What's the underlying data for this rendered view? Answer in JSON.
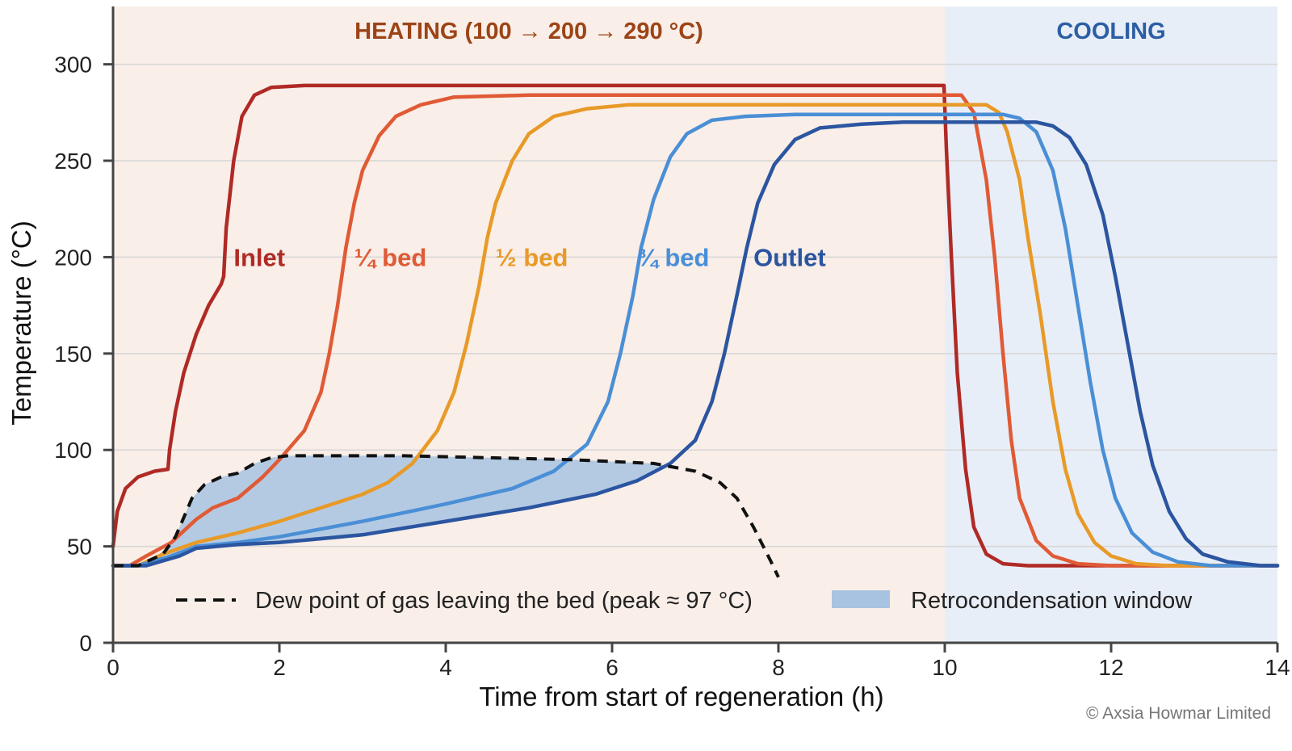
{
  "chart_data": {
    "type": "line",
    "title": "",
    "xlabel": "Time from start of regeneration (h)",
    "ylabel": "Temperature (°C)",
    "xlim": [
      0,
      14
    ],
    "ylim": [
      0,
      330
    ],
    "x_ticks": [
      "0",
      "2",
      "4",
      "6",
      "8",
      "10",
      "12",
      "14"
    ],
    "y_ticks": [
      "0",
      "50",
      "100",
      "150",
      "200",
      "250",
      "300"
    ],
    "grid": "horizontal",
    "phases": [
      {
        "label": "HEATING  (100 → 200 → 290 °C)",
        "x_start": 0,
        "x_end": 10,
        "color": "#f9eee8",
        "label_color": "#9c4416"
      },
      {
        "label": "COOLING",
        "x_start": 10,
        "x_end": 14,
        "color": "#e8eef7",
        "label_color": "#2c5ea6"
      }
    ],
    "series": [
      {
        "name": "Inlet",
        "color": "#b02a25",
        "label_pos": [
          1.45,
          200
        ],
        "points": [
          [
            0,
            50
          ],
          [
            0.05,
            68
          ],
          [
            0.15,
            80
          ],
          [
            0.3,
            86
          ],
          [
            0.5,
            89
          ],
          [
            0.66,
            90
          ],
          [
            0.68,
            100
          ],
          [
            0.75,
            120
          ],
          [
            0.85,
            140
          ],
          [
            1.0,
            160
          ],
          [
            1.15,
            175
          ],
          [
            1.3,
            186
          ],
          [
            1.33,
            190
          ],
          [
            1.36,
            215
          ],
          [
            1.45,
            250
          ],
          [
            1.55,
            273
          ],
          [
            1.7,
            284
          ],
          [
            1.9,
            288
          ],
          [
            2.3,
            289
          ],
          [
            9.99,
            289
          ],
          [
            10.02,
            255
          ],
          [
            10.08,
            200
          ],
          [
            10.15,
            140
          ],
          [
            10.25,
            90
          ],
          [
            10.35,
            60
          ],
          [
            10.5,
            46
          ],
          [
            10.7,
            41
          ],
          [
            11.0,
            40
          ],
          [
            14,
            40
          ]
        ]
      },
      {
        "name": "¼ bed",
        "color": "#e05a35",
        "label_pos": [
          2.9,
          200
        ],
        "points": [
          [
            0,
            40
          ],
          [
            0.2,
            40
          ],
          [
            0.4,
            45
          ],
          [
            0.7,
            52
          ],
          [
            1.0,
            64
          ],
          [
            1.2,
            70
          ],
          [
            1.5,
            75
          ],
          [
            1.8,
            86
          ],
          [
            2.0,
            95
          ],
          [
            2.3,
            110
          ],
          [
            2.5,
            130
          ],
          [
            2.6,
            150
          ],
          [
            2.7,
            175
          ],
          [
            2.8,
            205
          ],
          [
            2.9,
            228
          ],
          [
            3.0,
            245
          ],
          [
            3.2,
            263
          ],
          [
            3.4,
            273
          ],
          [
            3.7,
            279
          ],
          [
            4.1,
            283
          ],
          [
            5.0,
            284
          ],
          [
            10.2,
            284
          ],
          [
            10.35,
            275
          ],
          [
            10.5,
            240
          ],
          [
            10.6,
            200
          ],
          [
            10.7,
            150
          ],
          [
            10.8,
            105
          ],
          [
            10.9,
            75
          ],
          [
            11.1,
            53
          ],
          [
            11.3,
            45
          ],
          [
            11.6,
            41
          ],
          [
            12.0,
            40
          ],
          [
            14,
            40
          ]
        ]
      },
      {
        "name": "½ bed",
        "color": "#e89a28",
        "label_pos": [
          4.6,
          200
        ],
        "points": [
          [
            0,
            40
          ],
          [
            0.3,
            40
          ],
          [
            0.6,
            46
          ],
          [
            1.0,
            52
          ],
          [
            1.5,
            57
          ],
          [
            2.0,
            63
          ],
          [
            2.5,
            70
          ],
          [
            3.0,
            77
          ],
          [
            3.3,
            83
          ],
          [
            3.6,
            93
          ],
          [
            3.9,
            110
          ],
          [
            4.1,
            130
          ],
          [
            4.25,
            155
          ],
          [
            4.4,
            185
          ],
          [
            4.5,
            210
          ],
          [
            4.6,
            228
          ],
          [
            4.8,
            250
          ],
          [
            5.0,
            264
          ],
          [
            5.3,
            273
          ],
          [
            5.7,
            277
          ],
          [
            6.2,
            279
          ],
          [
            10.5,
            279
          ],
          [
            10.65,
            275
          ],
          [
            10.75,
            265
          ],
          [
            10.9,
            240
          ],
          [
            11.0,
            210
          ],
          [
            11.15,
            170
          ],
          [
            11.3,
            125
          ],
          [
            11.45,
            90
          ],
          [
            11.6,
            67
          ],
          [
            11.8,
            52
          ],
          [
            12.0,
            45
          ],
          [
            12.3,
            41
          ],
          [
            12.7,
            40
          ],
          [
            14,
            40
          ]
        ]
      },
      {
        "name": "¾ bed",
        "color": "#4a8fd6",
        "label_pos": [
          6.3,
          200
        ],
        "points": [
          [
            0,
            40
          ],
          [
            0.3,
            40
          ],
          [
            0.7,
            45
          ],
          [
            1.0,
            50
          ],
          [
            1.5,
            52
          ],
          [
            2.0,
            55
          ],
          [
            3.0,
            63
          ],
          [
            4.0,
            72
          ],
          [
            4.8,
            80
          ],
          [
            5.3,
            89
          ],
          [
            5.7,
            103
          ],
          [
            5.95,
            125
          ],
          [
            6.1,
            150
          ],
          [
            6.25,
            180
          ],
          [
            6.35,
            205
          ],
          [
            6.5,
            230
          ],
          [
            6.7,
            252
          ],
          [
            6.9,
            264
          ],
          [
            7.2,
            271
          ],
          [
            7.6,
            273
          ],
          [
            8.2,
            274
          ],
          [
            10.7,
            274
          ],
          [
            10.9,
            272
          ],
          [
            11.1,
            265
          ],
          [
            11.3,
            245
          ],
          [
            11.45,
            215
          ],
          [
            11.6,
            175
          ],
          [
            11.75,
            135
          ],
          [
            11.9,
            100
          ],
          [
            12.05,
            75
          ],
          [
            12.25,
            57
          ],
          [
            12.5,
            47
          ],
          [
            12.8,
            42
          ],
          [
            13.2,
            40
          ],
          [
            14,
            40
          ]
        ]
      },
      {
        "name": "Outlet",
        "color": "#2b55a0",
        "label_pos": [
          7.7,
          200
        ],
        "points": [
          [
            0,
            40
          ],
          [
            0.4,
            40
          ],
          [
            0.8,
            45
          ],
          [
            1.0,
            49
          ],
          [
            1.5,
            51
          ],
          [
            2.0,
            52
          ],
          [
            3.0,
            56
          ],
          [
            4.0,
            63
          ],
          [
            5.0,
            70
          ],
          [
            5.8,
            77
          ],
          [
            6.3,
            84
          ],
          [
            6.7,
            93
          ],
          [
            7.0,
            105
          ],
          [
            7.2,
            125
          ],
          [
            7.35,
            150
          ],
          [
            7.5,
            180
          ],
          [
            7.62,
            205
          ],
          [
            7.75,
            228
          ],
          [
            7.95,
            248
          ],
          [
            8.2,
            261
          ],
          [
            8.5,
            267
          ],
          [
            9.0,
            269
          ],
          [
            9.5,
            270
          ],
          [
            11.1,
            270
          ],
          [
            11.3,
            268
          ],
          [
            11.5,
            262
          ],
          [
            11.7,
            248
          ],
          [
            11.9,
            222
          ],
          [
            12.05,
            190
          ],
          [
            12.2,
            155
          ],
          [
            12.35,
            120
          ],
          [
            12.5,
            92
          ],
          [
            12.7,
            68
          ],
          [
            12.9,
            54
          ],
          [
            13.1,
            46
          ],
          [
            13.4,
            42
          ],
          [
            13.8,
            40
          ],
          [
            14,
            40
          ]
        ]
      }
    ],
    "dew_point": {
      "name": "Dew point of gas leaving the bed (peak ≈ 97 °C)",
      "color": "#111111",
      "peak": 97,
      "points": [
        [
          0,
          40
        ],
        [
          0.3,
          40
        ],
        [
          0.6,
          46
        ],
        [
          0.75,
          55
        ],
        [
          0.85,
          65
        ],
        [
          0.95,
          75
        ],
        [
          1.1,
          82
        ],
        [
          1.3,
          86
        ],
        [
          1.5,
          88
        ],
        [
          1.7,
          93
        ],
        [
          1.9,
          96
        ],
        [
          2.1,
          97
        ],
        [
          2.5,
          97
        ],
        [
          3.5,
          97
        ],
        [
          4.5,
          96
        ],
        [
          5.5,
          95
        ],
        [
          6.5,
          93
        ],
        [
          7.0,
          89
        ],
        [
          7.3,
          83
        ],
        [
          7.5,
          75
        ],
        [
          7.7,
          60
        ],
        [
          7.9,
          43
        ],
        [
          8.0,
          34
        ]
      ]
    },
    "retro_window": {
      "name": "Retrocondensation window",
      "color": "#a8c3e2",
      "x_start": 0.65,
      "x_end": 6.7
    },
    "legend_position": "bottom",
    "copyright": "© Axsia Howmar Limited"
  }
}
